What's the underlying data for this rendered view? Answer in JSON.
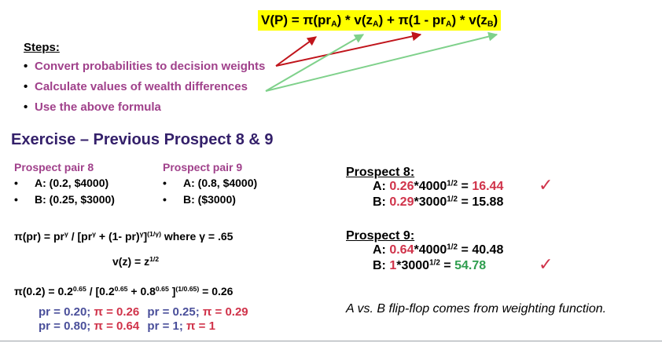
{
  "formula": {
    "part1": "V(P) = π(pr",
    "sub_a1": "A",
    "part2": ") * v(z",
    "sub_a2": "A",
    "part3": ") + π(1 - pr",
    "sub_a3": "A",
    "part4": ") * v(z",
    "sub_b": "B",
    "part5": ")"
  },
  "steps": {
    "heading": "Steps:",
    "items": [
      "Convert probabilities to decision weights",
      "Calculate values of wealth differences",
      "Use the above formula"
    ],
    "bullet": "•"
  },
  "exercise_title": "Exercise – Previous Prospect 8 & 9",
  "pair8": {
    "title": "Prospect pair 8",
    "a": "A: (0.2, $4000)",
    "b": "B: (0.25, $3000)"
  },
  "pair9": {
    "title": "Prospect pair 9",
    "a": "A: (0.8, $4000)",
    "b": "B: ($3000)"
  },
  "weighting": {
    "lhs": "π(pr) = pr",
    "gamma": "γ",
    "mid1": " / [pr",
    "mid2": " + (1- pr)",
    "close": "]",
    "exp": "(1/γ)",
    "where": " where γ = .65"
  },
  "value_fn": {
    "lhs": "v(z) = z",
    "exp": "1/2"
  },
  "calc": {
    "lhs": "π(0.2) = 0.2",
    "exp": "0.65",
    "mid1": " / [0.2",
    "mid2": " + 0.8",
    "mid3": " ]",
    "exp2": "(1/0.65)",
    "rhs": " = 0.26"
  },
  "pr_rows": [
    [
      {
        "pr": "pr = 0.20; ",
        "pi": "π = 0.26"
      },
      {
        "pr": "pr = 0.25; ",
        "pi": "π = 0.29"
      }
    ],
    [
      {
        "pr": "pr = 0.80; ",
        "pi": "π = 0.64"
      },
      {
        "pr": "pr = 1; ",
        "pi": "π = 1"
      }
    ]
  ],
  "p8": {
    "title": "Prospect 8:",
    "a_label": "A: ",
    "a_w": "0.26",
    "a_mid": "*4000",
    "a_eq": " = ",
    "a_val": "16.44",
    "b_label": "B: ",
    "b_w": "0.29",
    "b_mid": "*3000",
    "b_eq": " = 15.88",
    "half": "1/2"
  },
  "p9": {
    "title": "Prospect 9:",
    "a_label": "A: ",
    "a_w": "0.64",
    "a_mid": "*4000",
    "a_eq": " = 40.48",
    "b_label": "B: ",
    "b_w": "1",
    "b_mid": "*3000",
    "b_eq": " = ",
    "b_val": "54.78",
    "half": "1/2"
  },
  "check_glyph": "✓",
  "conclusion": "A vs. B flip-flop comes from weighting function.",
  "colors": {
    "highlight": "#ffff00",
    "purple": "#a0418b",
    "red": "#d0334a",
    "green": "#2f9e4f",
    "arrow_red": "#c0141b",
    "arrow_green": "#7fd18b",
    "title": "#34206a"
  }
}
